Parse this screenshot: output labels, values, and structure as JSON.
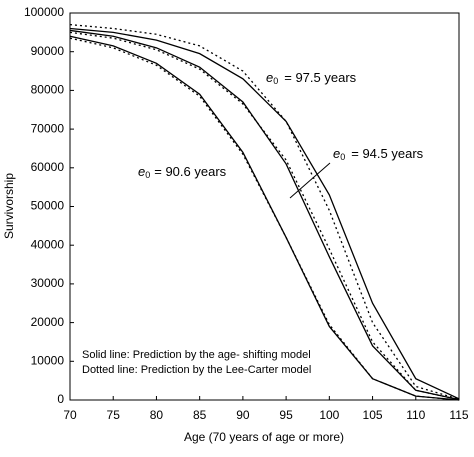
{
  "chart_data": {
    "type": "line",
    "x_label": "Age (70 years of age or more)",
    "y_label": "Survivorship",
    "x": [
      70,
      75,
      80,
      85,
      90,
      95,
      100,
      105,
      110,
      115
    ],
    "series": [
      {
        "color": "#000000",
        "dashed": false,
        "values": [
          94000,
          91500,
          87000,
          79000,
          64000,
          42000,
          19000,
          5500,
          1000,
          0
        ]
      },
      {
        "color": "#000000",
        "dashed": true,
        "values": [
          93500,
          91000,
          86500,
          78500,
          63500,
          42000,
          19500,
          5500,
          1000,
          0
        ]
      },
      {
        "color": "#000000",
        "dashed": false,
        "values": [
          95500,
          94000,
          91000,
          86000,
          77000,
          61000,
          37000,
          14000,
          2500,
          100
        ]
      },
      {
        "color": "#000000",
        "dashed": true,
        "values": [
          95000,
          93500,
          90500,
          85500,
          76500,
          62000,
          39000,
          15000,
          2500,
          100
        ]
      },
      {
        "color": "#000000",
        "dashed": false,
        "values": [
          96000,
          95000,
          93000,
          89500,
          83000,
          72000,
          53000,
          25000,
          5500,
          300
        ]
      },
      {
        "color": "#000000",
        "dashed": true,
        "values": [
          97000,
          96000,
          94500,
          91500,
          85000,
          72000,
          49000,
          20000,
          3500,
          200
        ]
      }
    ],
    "xlim": [
      70,
      115
    ],
    "ylim": [
      0,
      100000
    ],
    "xticks": [
      70,
      75,
      80,
      85,
      90,
      95,
      100,
      105,
      110,
      115
    ],
    "yticks": [
      0,
      10000,
      20000,
      30000,
      40000,
      50000,
      60000,
      70000,
      80000,
      90000,
      100000
    ],
    "grid": false,
    "annotations": [
      {
        "symbol": "e",
        "sub": "0",
        "text": "=   97.5 years"
      },
      {
        "symbol": "e",
        "sub": "0",
        "text": "=  94.5 years"
      },
      {
        "symbol": "e",
        "sub": "0",
        "text": "= 90.6 years"
      }
    ],
    "notes": [
      "Solid line: Prediction by the age- shifting  model",
      "Dotted line: Prediction by the Lee-Carter  model"
    ]
  }
}
